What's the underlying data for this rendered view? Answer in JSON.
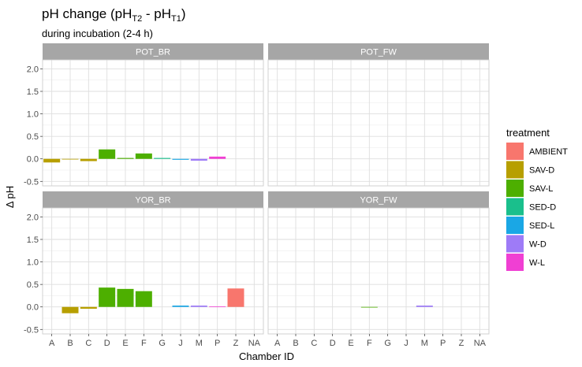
{
  "chart_data": {
    "type": "bar",
    "title_main": "pH change (pH",
    "title_sub1": "T2",
    "title_mid": " - pH",
    "title_sub2": "T1",
    "title_end": ")",
    "subtitle": "during incubation (2-4 h)",
    "xlabel": "Chamber ID",
    "ylabel": "Δ pH",
    "ylim": [
      -0.6,
      2.2
    ],
    "yticks": [
      -0.5,
      0.0,
      0.5,
      1.0,
      1.5,
      2.0
    ],
    "ytick_labels": [
      "-0.5",
      "0.0",
      "0.5",
      "1.0",
      "1.5",
      "2.0"
    ],
    "categories": [
      "A",
      "B",
      "C",
      "D",
      "E",
      "F",
      "G",
      "J",
      "M",
      "P",
      "Z",
      "NA"
    ],
    "grid": true,
    "legend_position": "right",
    "legend": {
      "title": "treatment",
      "entries": [
        {
          "label": "AMBIENT",
          "color": "#F8766D"
        },
        {
          "label": "SAV-D",
          "color": "#B79F00"
        },
        {
          "label": "SAV-L",
          "color": "#4DAF00"
        },
        {
          "label": "SED-D",
          "color": "#1ABF8C"
        },
        {
          "label": "SED-L",
          "color": "#1AA7E5"
        },
        {
          "label": "W-D",
          "color": "#9E7BF7"
        },
        {
          "label": "W-L",
          "color": "#F03FD3"
        }
      ]
    },
    "panels": [
      {
        "name": "POT_BR",
        "bars": [
          {
            "x": "A",
            "y": -0.08,
            "treatment": "SAV-D"
          },
          {
            "x": "B",
            "y": -0.01,
            "treatment": "SAV-D"
          },
          {
            "x": "C",
            "y": -0.05,
            "treatment": "SAV-D"
          },
          {
            "x": "D",
            "y": 0.21,
            "treatment": "SAV-L"
          },
          {
            "x": "E",
            "y": 0.02,
            "treatment": "SAV-L"
          },
          {
            "x": "F",
            "y": 0.12,
            "treatment": "SAV-L"
          },
          {
            "x": "G",
            "y": 0.02,
            "treatment": "SED-D"
          },
          {
            "x": "J",
            "y": -0.02,
            "treatment": "SED-L"
          },
          {
            "x": "M",
            "y": -0.04,
            "treatment": "W-D"
          },
          {
            "x": "P",
            "y": 0.05,
            "treatment": "W-L"
          }
        ]
      },
      {
        "name": "POT_FW",
        "bars": []
      },
      {
        "name": "YOR_BR",
        "bars": [
          {
            "x": "B",
            "y": -0.14,
            "treatment": "SAV-D"
          },
          {
            "x": "C",
            "y": -0.04,
            "treatment": "SAV-D"
          },
          {
            "x": "D",
            "y": 0.43,
            "treatment": "SAV-L"
          },
          {
            "x": "E",
            "y": 0.4,
            "treatment": "SAV-L"
          },
          {
            "x": "F",
            "y": 0.35,
            "treatment": "SAV-L"
          },
          {
            "x": "J",
            "y": 0.03,
            "treatment": "SED-L"
          },
          {
            "x": "M",
            "y": 0.03,
            "treatment": "W-D"
          },
          {
            "x": "P",
            "y": 0.01,
            "treatment": "W-L"
          },
          {
            "x": "Z",
            "y": 0.41,
            "treatment": "AMBIENT"
          }
        ]
      },
      {
        "name": "YOR_FW",
        "bars": [
          {
            "x": "F",
            "y": -0.01,
            "treatment": "SAV-L"
          },
          {
            "x": "M",
            "y": 0.03,
            "treatment": "W-D"
          }
        ]
      }
    ]
  }
}
